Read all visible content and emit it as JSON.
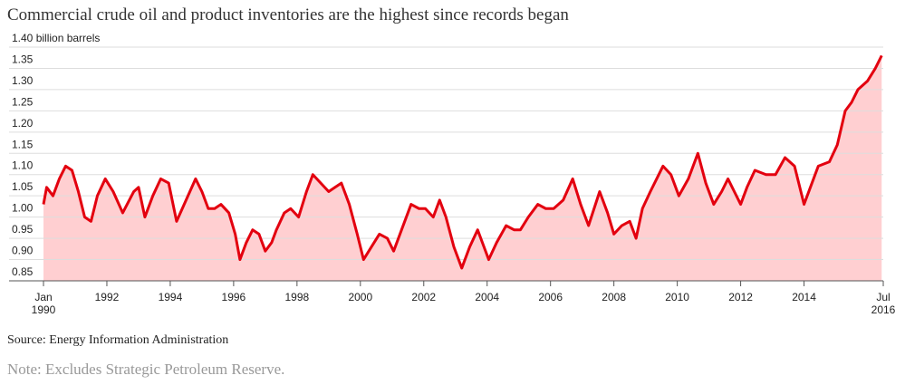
{
  "chart_data": {
    "type": "area",
    "title": "Commercial crude oil and product inventories are the highest since records began",
    "source": "Source: Energy Information Administration",
    "note": "Note: Excludes Strategic Petroleum Reserve.",
    "color": "#e3000f",
    "fill_color": "#ffcfd1",
    "grid": true,
    "xlim": [
      1990,
      2016.5
    ],
    "xticks": [
      {
        "value": 1990,
        "label": "Jan 1990"
      },
      1992,
      1994,
      1996,
      1998,
      2000,
      2002,
      2004,
      2006,
      2008,
      2010,
      2012,
      2014,
      {
        "value": 2016.5,
        "label": "Jul 2016"
      }
    ],
    "ylim": [
      0.85,
      1.4
    ],
    "yticks": [
      0.85,
      {
        "value": 0.9,
        "label": "0.90"
      },
      0.95,
      {
        "value": 1.0,
        "label": "1.00"
      },
      1.05,
      {
        "value": 1.1,
        "label": "1.10"
      },
      1.15,
      {
        "value": 1.2,
        "label": "1.20"
      },
      1.25,
      {
        "value": 1.3,
        "label": "1.30"
      },
      1.35,
      {
        "value": 1.4,
        "label": "1.40 billion barrels"
      }
    ],
    "x": [
      1990.0,
      1990.1,
      1990.3,
      1990.5,
      1990.7,
      1990.9,
      1991.1,
      1991.3,
      1991.5,
      1991.7,
      1991.95,
      1992.2,
      1992.5,
      1992.85,
      1993.0,
      1993.2,
      1993.45,
      1993.7,
      1993.95,
      1994.2,
      1994.5,
      1994.8,
      1995.0,
      1995.2,
      1995.4,
      1995.6,
      1995.85,
      1996.05,
      1996.2,
      1996.4,
      1996.6,
      1996.8,
      1997.0,
      1997.2,
      1997.35,
      1997.6,
      1997.8,
      1998.05,
      1998.3,
      1998.5,
      1998.75,
      1999.0,
      1999.2,
      1999.4,
      1999.65,
      1999.9,
      2000.1,
      2000.35,
      2000.6,
      2000.85,
      2001.05,
      2001.3,
      2001.6,
      2001.85,
      2002.05,
      2002.3,
      2002.5,
      2002.7,
      2002.95,
      2003.2,
      2003.45,
      2003.7,
      2003.9,
      2004.05,
      2004.3,
      2004.6,
      2004.85,
      2005.05,
      2005.3,
      2005.6,
      2005.85,
      2006.1,
      2006.4,
      2006.7,
      2006.95,
      2007.2,
      2007.55,
      2007.8,
      2008.0,
      2008.25,
      2008.5,
      2008.7,
      2008.9,
      2009.15,
      2009.35,
      2009.55,
      2009.8,
      2010.05,
      2010.35,
      2010.65,
      2010.9,
      2011.15,
      2011.4,
      2011.6,
      2011.8,
      2012.0,
      2012.2,
      2012.45,
      2012.8,
      2013.1,
      2013.4,
      2013.7,
      2014.0,
      2014.2,
      2014.45,
      2014.8,
      2015.05,
      2015.3,
      2015.5,
      2015.7,
      2016.0,
      2016.25,
      2016.45
    ],
    "values": [
      1.03,
      1.07,
      1.05,
      1.09,
      1.12,
      1.11,
      1.06,
      1.0,
      0.99,
      1.05,
      1.09,
      1.06,
      1.01,
      1.06,
      1.07,
      1.0,
      1.05,
      1.09,
      1.08,
      0.99,
      1.04,
      1.09,
      1.06,
      1.02,
      1.02,
      1.03,
      1.01,
      0.96,
      0.9,
      0.94,
      0.97,
      0.96,
      0.92,
      0.94,
      0.97,
      1.01,
      1.02,
      1.0,
      1.06,
      1.1,
      1.08,
      1.06,
      1.07,
      1.08,
      1.03,
      0.96,
      0.9,
      0.93,
      0.96,
      0.95,
      0.92,
      0.97,
      1.03,
      1.02,
      1.02,
      1.0,
      1.04,
      1.0,
      0.93,
      0.88,
      0.93,
      0.97,
      0.93,
      0.9,
      0.94,
      0.98,
      0.97,
      0.97,
      1.0,
      1.03,
      1.02,
      1.02,
      1.04,
      1.09,
      1.03,
      0.98,
      1.06,
      1.01,
      0.96,
      0.98,
      0.99,
      0.95,
      1.02,
      1.06,
      1.09,
      1.12,
      1.1,
      1.05,
      1.09,
      1.15,
      1.08,
      1.03,
      1.06,
      1.09,
      1.06,
      1.03,
      1.07,
      1.11,
      1.1,
      1.1,
      1.14,
      1.12,
      1.03,
      1.07,
      1.12,
      1.13,
      1.17,
      1.25,
      1.27,
      1.3,
      1.32,
      1.35,
      1.38
    ]
  }
}
